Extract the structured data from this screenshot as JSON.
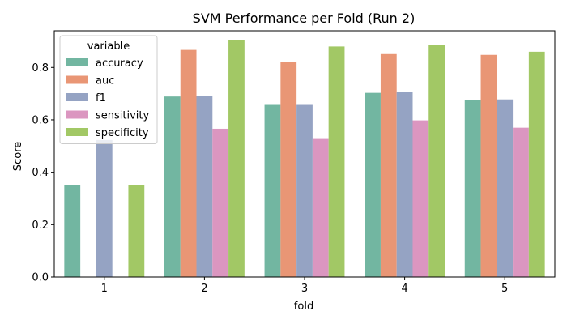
{
  "chart_data": {
    "type": "bar",
    "title": "SVM Performance per Fold (Run 2)",
    "xlabel": "fold",
    "ylabel": "Score",
    "categories": [
      "1",
      "2",
      "3",
      "4",
      "5"
    ],
    "ylim": [
      0,
      0.94
    ],
    "yticks": [
      "0.0",
      "0.2",
      "0.4",
      "0.6",
      "0.8"
    ],
    "ytick_values": [
      0.0,
      0.2,
      0.4,
      0.6,
      0.8
    ],
    "grid": false,
    "legend": {
      "title": "variable",
      "position": "top-left"
    },
    "series": [
      {
        "name": "accuracy",
        "color": "#72b6a1",
        "values": [
          0.352,
          0.689,
          0.657,
          0.703,
          0.676
        ]
      },
      {
        "name": "auc",
        "color": "#e99675",
        "values": [
          0.0,
          0.867,
          0.82,
          0.851,
          0.848
        ]
      },
      {
        "name": "f1",
        "color": "#95a3c3",
        "values": [
          0.523,
          0.69,
          0.657,
          0.706,
          0.678
        ]
      },
      {
        "name": "sensitivity",
        "color": "#db96c0",
        "values": [
          0.0,
          0.566,
          0.53,
          0.598,
          0.57
        ]
      },
      {
        "name": "specificity",
        "color": "#a2c865",
        "values": [
          0.352,
          0.905,
          0.88,
          0.886,
          0.86
        ]
      }
    ]
  }
}
